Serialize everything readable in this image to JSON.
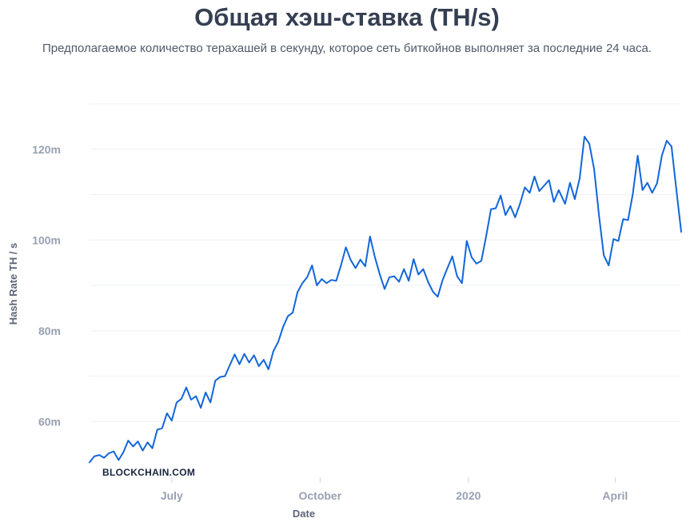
{
  "chart_data": {
    "type": "line",
    "title": "Общая хэш-ставка (TH/s)",
    "subtitle": "Предполагаемое количество терахашей в секунду, которое сеть биткойнов выполняет за последние 24 часа.",
    "xlabel": "Date",
    "ylabel": "Hash Rate TH / s",
    "watermark": "BLOCKCHAIN.COM",
    "x_ticks": [
      {
        "date": "2019-07-01",
        "label": "July"
      },
      {
        "date": "2019-10-01",
        "label": "October"
      },
      {
        "date": "2020-01-01",
        "label": "2020"
      },
      {
        "date": "2020-04-01",
        "label": "April"
      }
    ],
    "y_ticks": [
      {
        "value": 60,
        "label": "60m"
      },
      {
        "value": 80,
        "label": "80m"
      },
      {
        "value": 100,
        "label": "100m"
      },
      {
        "value": 120,
        "label": "120m"
      }
    ],
    "xlim": [
      "2019-05-11",
      "2020-05-12"
    ],
    "ylim": [
      50,
      130
    ],
    "grid": true,
    "series": [
      {
        "color": "#1266d9",
        "points": [
          [
            "2019-05-11",
            51.0
          ],
          [
            "2019-05-14",
            52.3
          ],
          [
            "2019-05-17",
            52.6
          ],
          [
            "2019-05-20",
            52.0
          ],
          [
            "2019-05-23",
            53.0
          ],
          [
            "2019-05-26",
            53.4
          ],
          [
            "2019-05-29",
            51.5
          ],
          [
            "2019-06-01",
            53.2
          ],
          [
            "2019-06-04",
            55.8
          ],
          [
            "2019-06-07",
            54.5
          ],
          [
            "2019-06-10",
            55.6
          ],
          [
            "2019-06-13",
            53.6
          ],
          [
            "2019-06-16",
            55.4
          ],
          [
            "2019-06-19",
            54.1
          ],
          [
            "2019-06-22",
            58.2
          ],
          [
            "2019-06-25",
            58.5
          ],
          [
            "2019-06-28",
            61.8
          ],
          [
            "2019-07-01",
            60.2
          ],
          [
            "2019-07-04",
            64.2
          ],
          [
            "2019-07-07",
            65.0
          ],
          [
            "2019-07-10",
            67.5
          ],
          [
            "2019-07-13",
            64.8
          ],
          [
            "2019-07-16",
            65.6
          ],
          [
            "2019-07-19",
            63.0
          ],
          [
            "2019-07-22",
            66.4
          ],
          [
            "2019-07-25",
            64.2
          ],
          [
            "2019-07-28",
            69.0
          ],
          [
            "2019-07-31",
            69.8
          ],
          [
            "2019-08-03",
            70.0
          ],
          [
            "2019-08-06",
            72.4
          ],
          [
            "2019-08-09",
            74.8
          ],
          [
            "2019-08-12",
            72.6
          ],
          [
            "2019-08-15",
            74.9
          ],
          [
            "2019-08-18",
            73.0
          ],
          [
            "2019-08-21",
            74.6
          ],
          [
            "2019-08-24",
            72.2
          ],
          [
            "2019-08-27",
            73.6
          ],
          [
            "2019-08-30",
            71.5
          ],
          [
            "2019-09-02",
            75.5
          ],
          [
            "2019-09-05",
            77.5
          ],
          [
            "2019-09-08",
            80.8
          ],
          [
            "2019-09-11",
            83.2
          ],
          [
            "2019-09-14",
            84.0
          ],
          [
            "2019-09-17",
            88.5
          ],
          [
            "2019-09-20",
            90.5
          ],
          [
            "2019-09-23",
            91.8
          ],
          [
            "2019-09-26",
            94.4
          ],
          [
            "2019-09-29",
            90.0
          ],
          [
            "2019-10-02",
            91.4
          ],
          [
            "2019-10-05",
            90.5
          ],
          [
            "2019-10-08",
            91.2
          ],
          [
            "2019-10-11",
            91.0
          ],
          [
            "2019-10-14",
            94.5
          ],
          [
            "2019-10-17",
            98.4
          ],
          [
            "2019-10-20",
            95.6
          ],
          [
            "2019-10-23",
            93.8
          ],
          [
            "2019-10-26",
            95.7
          ],
          [
            "2019-10-29",
            94.2
          ],
          [
            "2019-11-01",
            100.8
          ],
          [
            "2019-11-04",
            96.2
          ],
          [
            "2019-11-07",
            92.5
          ],
          [
            "2019-11-10",
            89.2
          ],
          [
            "2019-11-13",
            91.8
          ],
          [
            "2019-11-16",
            92.0
          ],
          [
            "2019-11-19",
            90.8
          ],
          [
            "2019-11-22",
            93.6
          ],
          [
            "2019-11-25",
            91.0
          ],
          [
            "2019-11-28",
            95.8
          ],
          [
            "2019-12-01",
            92.4
          ],
          [
            "2019-12-04",
            93.6
          ],
          [
            "2019-12-07",
            90.8
          ],
          [
            "2019-12-10",
            88.6
          ],
          [
            "2019-12-13",
            87.5
          ],
          [
            "2019-12-16",
            91.2
          ],
          [
            "2019-12-19",
            93.8
          ],
          [
            "2019-12-22",
            96.4
          ],
          [
            "2019-12-25",
            92.0
          ],
          [
            "2019-12-28",
            90.5
          ],
          [
            "2019-12-31",
            99.8
          ],
          [
            "2020-01-03",
            96.2
          ],
          [
            "2020-01-06",
            94.8
          ],
          [
            "2020-01-09",
            95.4
          ],
          [
            "2020-01-12",
            100.8
          ],
          [
            "2020-01-15",
            106.8
          ],
          [
            "2020-01-18",
            107.0
          ],
          [
            "2020-01-21",
            109.8
          ],
          [
            "2020-01-24",
            105.5
          ],
          [
            "2020-01-27",
            107.5
          ],
          [
            "2020-01-30",
            105.0
          ],
          [
            "2020-02-02",
            108.0
          ],
          [
            "2020-02-05",
            111.6
          ],
          [
            "2020-02-08",
            110.4
          ],
          [
            "2020-02-11",
            114.0
          ],
          [
            "2020-02-14",
            110.8
          ],
          [
            "2020-02-17",
            112.0
          ],
          [
            "2020-02-20",
            113.2
          ],
          [
            "2020-02-23",
            108.4
          ],
          [
            "2020-02-26",
            111.0
          ],
          [
            "2020-03-01",
            108.0
          ],
          [
            "2020-03-04",
            112.6
          ],
          [
            "2020-03-07",
            109.0
          ],
          [
            "2020-03-10",
            113.6
          ],
          [
            "2020-03-13",
            122.8
          ],
          [
            "2020-03-16",
            121.2
          ],
          [
            "2020-03-19",
            115.6
          ],
          [
            "2020-03-22",
            105.4
          ],
          [
            "2020-03-25",
            96.6
          ],
          [
            "2020-03-28",
            94.4
          ],
          [
            "2020-03-31",
            100.2
          ],
          [
            "2020-04-03",
            99.8
          ],
          [
            "2020-04-06",
            104.6
          ],
          [
            "2020-04-09",
            104.4
          ],
          [
            "2020-04-12",
            110.2
          ],
          [
            "2020-04-15",
            118.6
          ],
          [
            "2020-04-18",
            111.0
          ],
          [
            "2020-04-21",
            112.6
          ],
          [
            "2020-04-24",
            110.4
          ],
          [
            "2020-04-27",
            112.5
          ],
          [
            "2020-04-30",
            118.6
          ],
          [
            "2020-05-03",
            121.9
          ],
          [
            "2020-05-06",
            120.6
          ],
          [
            "2020-05-09",
            111.0
          ],
          [
            "2020-05-12",
            101.8
          ]
        ]
      }
    ]
  }
}
